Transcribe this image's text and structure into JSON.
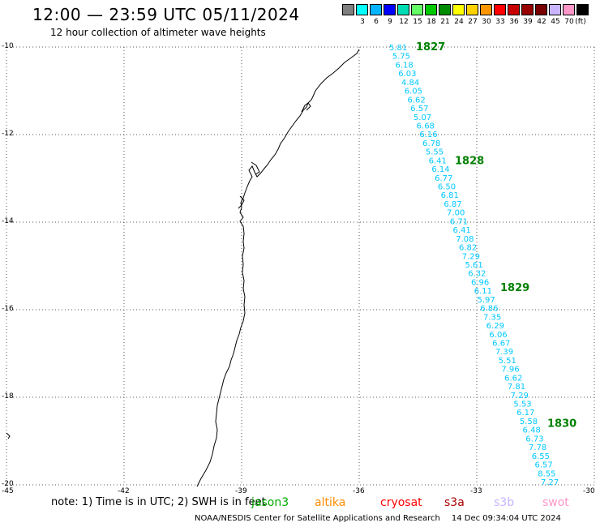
{
  "header": {
    "title": "12:00 — 23:59 UTC 05/11/2024",
    "subtitle": "12 hour collection of altimeter wave heights"
  },
  "legend": {
    "unit": "(ft)",
    "items": [
      {
        "color": "#808080",
        "label": ""
      },
      {
        "color": "#00ffff",
        "label": "3"
      },
      {
        "color": "#00b4ff",
        "label": "6"
      },
      {
        "color": "#0000ff",
        "label": "9"
      },
      {
        "color": "#00dcb4",
        "label": "12"
      },
      {
        "color": "#64ff64",
        "label": "15"
      },
      {
        "color": "#00c800",
        "label": "18"
      },
      {
        "color": "#008c00",
        "label": "21"
      },
      {
        "color": "#ffff00",
        "label": "24"
      },
      {
        "color": "#ffd200",
        "label": "27"
      },
      {
        "color": "#ff9600",
        "label": "30"
      },
      {
        "color": "#ff0000",
        "label": "33"
      },
      {
        "color": "#c80000",
        "label": "36"
      },
      {
        "color": "#960000",
        "label": "39"
      },
      {
        "color": "#780000",
        "label": "42"
      },
      {
        "color": "#c8b4ff",
        "label": "45"
      },
      {
        "color": "#ff96c8",
        "label": "70"
      },
      {
        "color": "#000000",
        "label": ""
      }
    ]
  },
  "axes": {
    "lat_labels": [
      "-10",
      "-12",
      "-14",
      "-16",
      "-18",
      "-20"
    ],
    "lon_labels": [
      "-45",
      "-42",
      "-39",
      "-36",
      "-33",
      "-30"
    ],
    "lat_range": [
      -10,
      -20
    ],
    "lon_range": [
      -45,
      -30
    ],
    "grid": "dotted"
  },
  "passes": [
    {
      "id": "1827",
      "lat": -10.0
    },
    {
      "id": "1828",
      "lat": -12.6
    },
    {
      "id": "1829",
      "lat": -15.5
    },
    {
      "id": "1830",
      "lat": -18.6
    }
  ],
  "wave_heights": [
    "5.81",
    "5.75",
    "6.18",
    "6.03",
    "4.84",
    "6.05",
    "6.62",
    "6.57",
    "5.07",
    "6.68",
    "6.16",
    "6.78",
    "5.55",
    "6.41",
    "6.14",
    "6.77",
    "6.50",
    "6.81",
    "6.87",
    "7.00",
    "6.71",
    "6.41",
    "7.08",
    "6.82",
    "7.29",
    "5.61",
    "6.32",
    "6.96",
    "6.11",
    "5.97",
    "6.86",
    "7.35",
    "6.29",
    "6.06",
    "6.67",
    "7.39",
    "5.51",
    "7.96",
    "6.62",
    "7.81",
    "7.29",
    "5.53",
    "6.17",
    "5.58",
    "6.48",
    "6.73",
    "7.78",
    "6.55",
    "6.57",
    "8.55",
    "7.27"
  ],
  "note": {
    "text": "note: 1) Time is in UTC; 2) SWH is in feet",
    "satellites": [
      {
        "name": "jason3",
        "color": "#00aa00"
      },
      {
        "name": "altika",
        "color": "#ff8c00"
      },
      {
        "name": "cryosat",
        "color": "#ff0000"
      },
      {
        "name": "s3a",
        "color": "#aa0000"
      },
      {
        "name": "s3b",
        "color": "#c8b4ff"
      },
      {
        "name": "swot",
        "color": "#ff96c8"
      }
    ]
  },
  "footer": {
    "org": "NOAA/NESDIS Center for Satellite Applications and Research",
    "timestamp": "14 Dec 09:34:04 UTC 2024"
  }
}
